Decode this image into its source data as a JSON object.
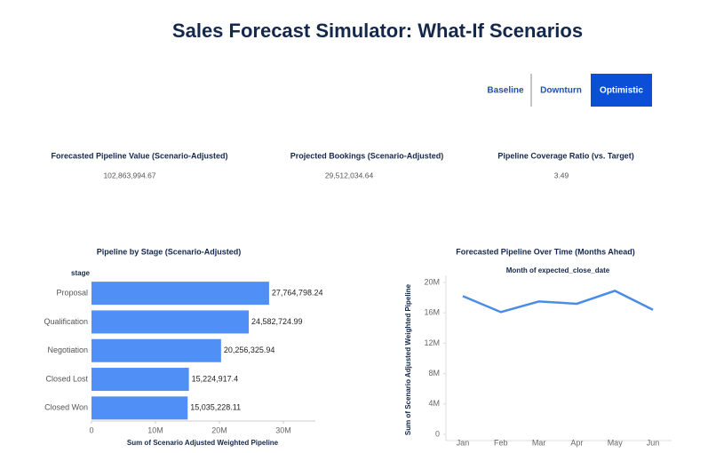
{
  "header": {
    "title": "Sales Forecast Simulator: What-If Scenarios"
  },
  "scenario_buttons": {
    "labels": [
      "Baseline",
      "Downturn",
      "Optimistic"
    ],
    "selected": 2
  },
  "kpis": [
    {
      "label": "Forecasted Pipeline Value (Scenario-Adjusted)",
      "value": "102,863,994.67"
    },
    {
      "label": "Projected Bookings (Scenario-Adjusted)",
      "value": "29,512,034.64"
    },
    {
      "label": "Pipeline Coverage Ratio (vs. Target)",
      "value": "3.49"
    }
  ],
  "chart_data": [
    {
      "type": "bar",
      "orientation": "horizontal",
      "title": "Pipeline by Stage (Scenario-Adjusted)",
      "y_label": "stage",
      "x_label": "Sum of Scenario Adjusted Weighted Pipeline",
      "categories": [
        "Proposal",
        "Qualification",
        "Negotiation",
        "Closed Lost",
        "Closed Won"
      ],
      "values": [
        27764798.24,
        24582724.99,
        20256325.94,
        15224917.4,
        15035228.11
      ],
      "value_labels": [
        "27,764,798.24",
        "24,582,724.99",
        "20,256,325.94",
        "15,224,917.4",
        "15,035,228.11"
      ],
      "color": "#4f8ff6",
      "xlim": [
        0,
        35000000
      ],
      "xticks": [
        0,
        {
          "value": 10000000,
          "label": "10M"
        },
        {
          "value": 20000000,
          "label": "20M"
        },
        {
          "value": 30000000,
          "label": "30M"
        }
      ]
    },
    {
      "type": "line",
      "title": "Forecasted Pipeline Over Time (Months Ahead)",
      "subtitle": "Month of expected_close_date",
      "y_label": "Sum of Scenario Adjusted Weighted Pipeline",
      "categories": [
        "Jan",
        "Feb",
        "Mar",
        "Apr",
        "May",
        "Jun"
      ],
      "values": [
        18200000,
        16100000,
        17500000,
        17200000,
        18900000,
        16400000
      ],
      "color": "#4a8ce8",
      "ylim": [
        0,
        20000000
      ],
      "yticks": [
        0,
        {
          "value": 4000000,
          "label": "4M"
        },
        {
          "value": 8000000,
          "label": "8M"
        },
        {
          "value": 12000000,
          "label": "12M"
        },
        {
          "value": 16000000,
          "label": "16M"
        },
        {
          "value": 20000000,
          "label": "20M"
        }
      ]
    }
  ]
}
